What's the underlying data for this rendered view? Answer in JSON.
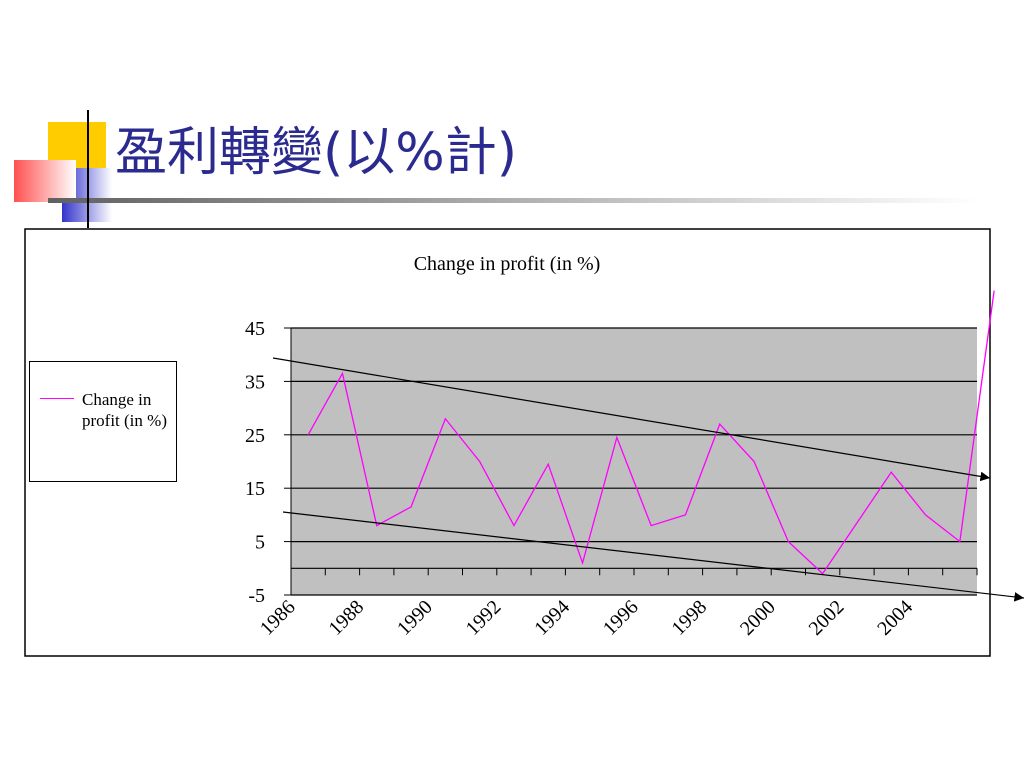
{
  "slide_title": "盈利轉變(以%計)",
  "chart_data": {
    "type": "line",
    "title": "Change in profit (in %)",
    "categories": [
      "1986",
      null,
      "1988",
      null,
      "1990",
      null,
      "1992",
      null,
      "1994",
      null,
      "1996",
      null,
      "1998",
      null,
      "2000",
      null,
      "2002",
      null,
      "2004",
      null,
      null
    ],
    "series": [
      {
        "name": "Change in profit (in %)",
        "color": "#ff00ff",
        "values": [
          25,
          36.5,
          8,
          11.5,
          28,
          20,
          8,
          19.5,
          1,
          24.5,
          8,
          10,
          27,
          20,
          5,
          -1,
          8.5,
          18,
          10,
          5,
          52
        ]
      }
    ],
    "ylim": [
      -5,
      45
    ],
    "yticks": [
      -5,
      5,
      15,
      25,
      35,
      45
    ],
    "grid": true,
    "legend": "left"
  }
}
